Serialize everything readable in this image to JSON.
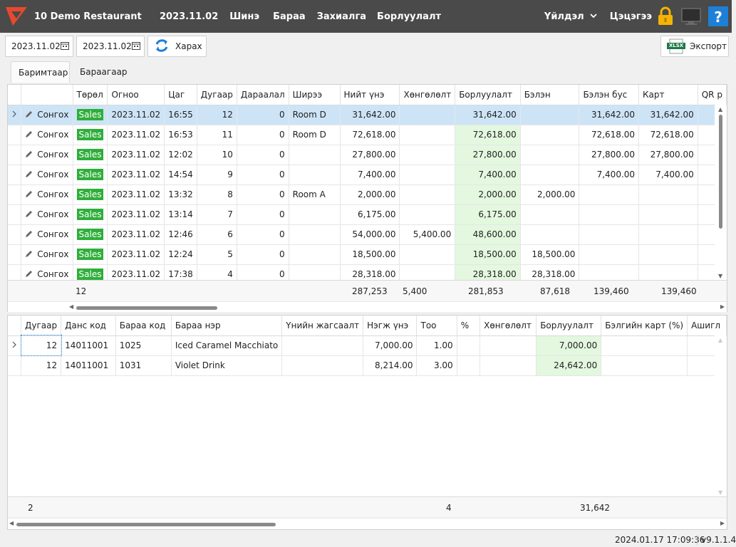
{
  "header": {
    "app_title": "10 Demo Restaurant",
    "date": "2023.11.02",
    "menu": [
      "Шинэ",
      "Бараа",
      "Захиалга",
      "Борлуулалт"
    ],
    "user_menu": "Үйлдэл",
    "logout": "Цэцэгээ"
  },
  "toolbar": {
    "date_from": "2023.11.02",
    "date_to": "2023.11.02",
    "view_button": "Харах",
    "export_button": "Экспорт",
    "xlsx_label": "XLSX"
  },
  "tabs": [
    "Баримтаар",
    "Бараагаар"
  ],
  "top_grid": {
    "columns": [
      "Төрөл",
      "Огноо",
      "Цаг",
      "Дугаар",
      "Дараалал",
      "Ширээ",
      "Нийт үнэ",
      "Хөнгөлөлт",
      "Борлуулалт",
      "Бэлэн",
      "Бэлэн бус",
      "Карт",
      "QR р"
    ],
    "select_label": "Сонгох",
    "rows": [
      [
        "Sales",
        "2023.11.02",
        "16:55",
        "12",
        "0",
        "Room D",
        "31,642.00",
        "",
        "31,642.00",
        "",
        "31,642.00",
        "31,642.00"
      ],
      [
        "Sales",
        "2023.11.02",
        "16:53",
        "11",
        "0",
        "Room D",
        "72,618.00",
        "",
        "72,618.00",
        "",
        "72,618.00",
        "72,618.00"
      ],
      [
        "Sales",
        "2023.11.02",
        "12:02",
        "10",
        "0",
        "",
        "27,800.00",
        "",
        "27,800.00",
        "",
        "27,800.00",
        "27,800.00"
      ],
      [
        "Sales",
        "2023.11.02",
        "14:54",
        "9",
        "0",
        "",
        "7,400.00",
        "",
        "7,400.00",
        "",
        "7,400.00",
        "7,400.00"
      ],
      [
        "Sales",
        "2023.11.02",
        "13:32",
        "8",
        "0",
        "Room A",
        "2,000.00",
        "",
        "2,000.00",
        "2,000.00",
        "",
        ""
      ],
      [
        "Sales",
        "2023.11.02",
        "13:14",
        "7",
        "0",
        "",
        "6,175.00",
        "",
        "6,175.00",
        "",
        "",
        ""
      ],
      [
        "Sales",
        "2023.11.02",
        "12:46",
        "6",
        "0",
        "",
        "54,000.00",
        "5,400.00",
        "48,600.00",
        "",
        "",
        ""
      ],
      [
        "Sales",
        "2023.11.02",
        "12:24",
        "5",
        "0",
        "",
        "18,500.00",
        "",
        "18,500.00",
        "18,500.00",
        "",
        ""
      ],
      [
        "Sales",
        "2023.11.02",
        "17:38",
        "4",
        "0",
        "",
        "28,318.00",
        "",
        "28,318.00",
        "28,318.00",
        "",
        ""
      ]
    ],
    "totals": {
      "count": "12",
      "total": "287,253",
      "discount": "5,400",
      "sales": "281,853",
      "cash": "87,618",
      "noncash": "139,460",
      "card": "139,460"
    }
  },
  "bottom_grid": {
    "columns": [
      "Дугаар",
      "Данс код",
      "Бараа код",
      "Бараа нэр",
      "Үнийн жагсаалт",
      "Нэгж үнэ",
      "Тоо",
      "%",
      "Хөнгөлөлт",
      "Борлуулалт",
      "Бэлгийн карт (%)",
      "Ашигл"
    ],
    "rows": [
      [
        "12",
        "14011001",
        "1025",
        "Iced Caramel Macchiato",
        "",
        "7,000.00",
        "1.00",
        "",
        "",
        "7,000.00",
        ""
      ],
      [
        "12",
        "14011001",
        "1031",
        "Violet Drink",
        "",
        "8,214.00",
        "3.00",
        "",
        "",
        "24,642.00",
        ""
      ]
    ],
    "totals": {
      "count": "2",
      "qty": "4",
      "sales": "31,642"
    }
  },
  "status": {
    "datetime": "2024.01.17 17:09:36",
    "version": "v9.1.1.4"
  },
  "colors": {
    "topbar": "#4a4a4a",
    "sales_badge": "#2fae3a",
    "selected_row": "#cde4f7",
    "sales_column": "#e3f8df",
    "lock": "#f5b400",
    "help": "#1e7fd6"
  }
}
